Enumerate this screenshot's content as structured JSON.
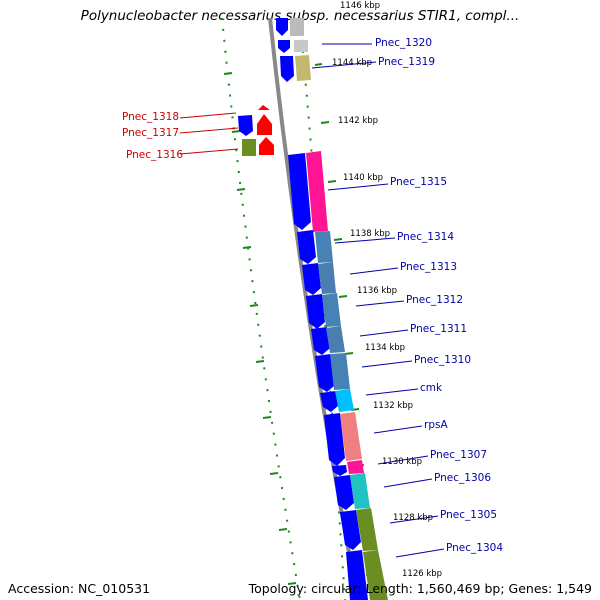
{
  "title": "Polynucleobacter necessarius subsp. necessarius STIR1, compl...",
  "accession_label": "Accession: NC_010531",
  "topology_label": "Topology: circular; Length: 1,560,469 bp; Genes: 1,549",
  "colors": {
    "blue": "#0000ff",
    "label_blue": "#0000aa",
    "label_red": "#cc0000",
    "tick_green": "#1a8a1a",
    "backbone": "#888888"
  },
  "kbp_labels": [
    "1146 kbp",
    "1144 kbp",
    "1142 kbp",
    "1140 kbp",
    "1138 kbp",
    "1136 kbp",
    "1134 kbp",
    "1132 kbp",
    "1130 kbp",
    "1128 kbp",
    "1126 kbp"
  ],
  "gene_labels": [
    {
      "text": "Pnec_1320",
      "color": "blue"
    },
    {
      "text": "Pnec_1319",
      "color": "blue"
    },
    {
      "text": "Pnec_1318",
      "color": "red"
    },
    {
      "text": "Pnec_1317",
      "color": "red"
    },
    {
      "text": "Pnec_1316",
      "color": "red"
    },
    {
      "text": "Pnec_1315",
      "color": "blue"
    },
    {
      "text": "Pnec_1314",
      "color": "blue"
    },
    {
      "text": "Pnec_1313",
      "color": "blue"
    },
    {
      "text": "Pnec_1312",
      "color": "blue"
    },
    {
      "text": "Pnec_1311",
      "color": "blue"
    },
    {
      "text": "Pnec_1310",
      "color": "blue"
    },
    {
      "text": "cmk",
      "color": "blue"
    },
    {
      "text": "rpsA",
      "color": "blue"
    },
    {
      "text": "Pnec_1307",
      "color": "blue"
    },
    {
      "text": "Pnec_1306",
      "color": "blue"
    },
    {
      "text": "Pnec_1305",
      "color": "blue"
    },
    {
      "text": "Pnec_1304",
      "color": "blue"
    }
  ]
}
